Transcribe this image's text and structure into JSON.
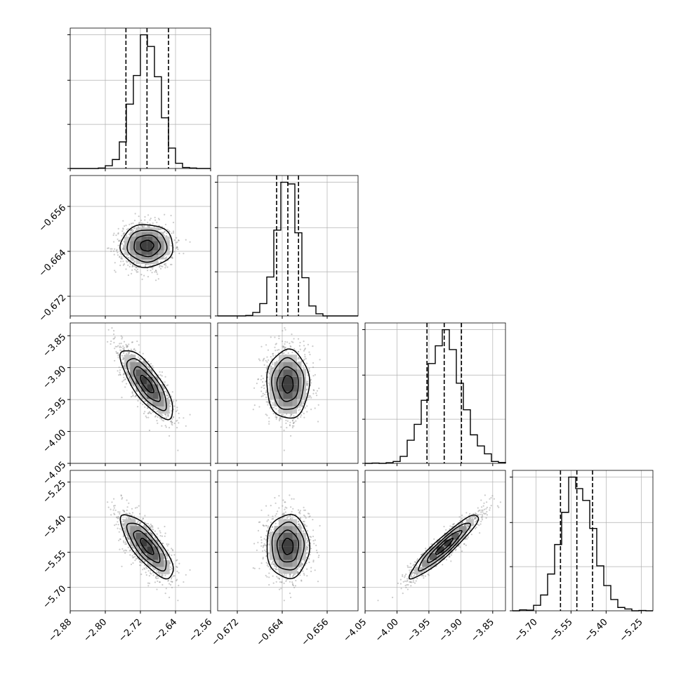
{
  "chart_data": {
    "type": "scatter",
    "subtype": "corner-plot",
    "grid": true,
    "colors": {
      "line": "#000000",
      "grid": "#b0b0b0",
      "points": "#8c8c8c",
      "background": "#ffffff"
    },
    "parameters": [
      {
        "id": "p0",
        "range": [
          -2.88,
          -2.56
        ],
        "ticks": [
          -2.88,
          -2.8,
          -2.72,
          -2.64,
          -2.56
        ],
        "tick_labels": [
          "−2.88",
          "−2.80",
          "−2.72",
          "−2.64",
          "−2.56"
        ],
        "quantiles": [
          -2.753,
          -2.705,
          -2.656
        ],
        "mean": -2.705,
        "sd": 0.03
      },
      {
        "id": "p1",
        "range": [
          -0.6755,
          -0.6505
        ],
        "ticks": [
          -0.672,
          -0.664,
          -0.656
        ],
        "tick_labels": [
          "−0.672",
          "−0.664",
          "−0.656"
        ],
        "quantiles": [
          -0.665,
          -0.663,
          -0.6611
        ],
        "mean": -0.663,
        "sd": 0.0019
      },
      {
        "id": "p2",
        "range": [
          -4.05,
          -3.83
        ],
        "ticks": [
          -4.05,
          -4.0,
          -3.95,
          -3.9,
          -3.85
        ],
        "tick_labels": [
          "−4.05",
          "−4.00",
          "−3.95",
          "−3.90",
          "−3.85"
        ],
        "quantiles": [
          -3.953,
          -3.926,
          -3.899
        ],
        "mean": -3.926,
        "sd": 0.027
      },
      {
        "id": "p3",
        "range": [
          -5.8,
          -5.2
        ],
        "ticks": [
          -5.7,
          -5.55,
          -5.4,
          -5.25
        ],
        "tick_labels": [
          "−5.70",
          "−5.55",
          "−5.40",
          "−5.25"
        ],
        "quantiles": [
          -5.595,
          -5.525,
          -5.458
        ],
        "mean": -5.525,
        "sd": 0.068
      }
    ],
    "correlations": [
      {
        "pair": [
          0,
          1
        ],
        "r": 0.0
      },
      {
        "pair": [
          0,
          2
        ],
        "r": -0.78
      },
      {
        "pair": [
          0,
          3
        ],
        "r": -0.78
      },
      {
        "pair": [
          1,
          2
        ],
        "r": 0.0
      },
      {
        "pair": [
          1,
          3
        ],
        "r": 0.0
      },
      {
        "pair": [
          2,
          3
        ],
        "r": 0.93
      }
    ],
    "histogram_bins": 20,
    "quantile_levels": [
      0.16,
      0.5,
      0.84
    ],
    "contour_levels": [
      0.118,
      0.393,
      0.675,
      0.864
    ]
  }
}
